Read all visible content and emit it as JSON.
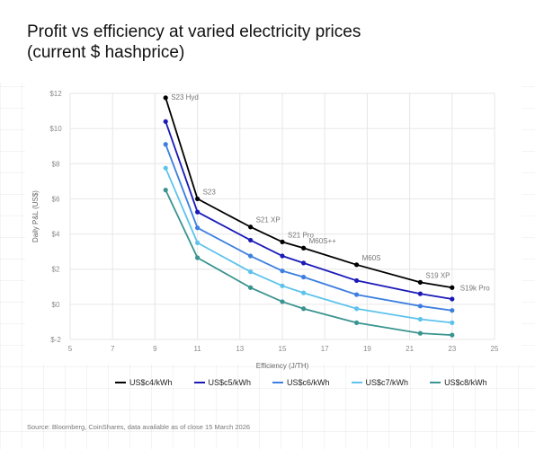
{
  "header": {
    "title_line1": "Profit vs efficiency at varied electricity prices",
    "title_line2": "(current $ hashprice)"
  },
  "source": "Source: Bloomberg, CoinShares, data available as of close 15 March 2026",
  "chart_data": {
    "type": "line",
    "title": "Profit vs efficiency at varied electricity prices (current $ hashprice)",
    "xlabel": "Efficiency (J/TH)",
    "ylabel": "Daily P&L (US$)",
    "xlim": [
      5,
      25
    ],
    "ylim": [
      -2,
      12
    ],
    "x_ticks": [
      5,
      7,
      9,
      11,
      13,
      15,
      17,
      19,
      21,
      23,
      25
    ],
    "y_ticks": [
      {
        "value": 12,
        "label": "$12"
      },
      {
        "value": 10,
        "label": "$10"
      },
      {
        "value": 8,
        "label": "$8"
      },
      {
        "value": 6,
        "label": "$6"
      },
      {
        "value": 4,
        "label": "$4"
      },
      {
        "value": 2,
        "label": "$2"
      },
      {
        "value": 0,
        "label": "$0"
      },
      {
        "value": -2,
        "label": "$-2"
      }
    ],
    "grid": true,
    "legend_position": "bottom",
    "x": [
      9.5,
      11,
      13.5,
      15,
      16,
      18.5,
      21.5,
      23
    ],
    "point_labels": [
      "S23 Hyd",
      "S23",
      "S21 XP",
      "S21 Pro",
      "M60S++",
      "M60S",
      "S19 XP",
      "S19k Pro"
    ],
    "series": [
      {
        "name": "US$c4/kWh",
        "color": "#000000",
        "values": [
          11.75,
          6.0,
          4.4,
          3.55,
          3.2,
          2.25,
          1.25,
          0.95
        ]
      },
      {
        "name": "US$c5/kWh",
        "color": "#1a1ab8",
        "values": [
          10.4,
          5.25,
          3.65,
          2.75,
          2.35,
          1.35,
          0.6,
          0.3
        ]
      },
      {
        "name": "US$c6/kWh",
        "color": "#3d7fe0",
        "values": [
          9.1,
          4.35,
          2.75,
          1.9,
          1.55,
          0.55,
          -0.1,
          -0.35
        ]
      },
      {
        "name": "US$c7/kWh",
        "color": "#5ec3ec",
        "values": [
          7.75,
          3.5,
          1.85,
          1.05,
          0.65,
          -0.25,
          -0.85,
          -1.05
        ]
      },
      {
        "name": "US$c8/kWh",
        "color": "#3a9490",
        "values": [
          6.5,
          2.65,
          0.95,
          0.15,
          -0.25,
          -1.05,
          -1.65,
          -1.75
        ]
      }
    ]
  }
}
